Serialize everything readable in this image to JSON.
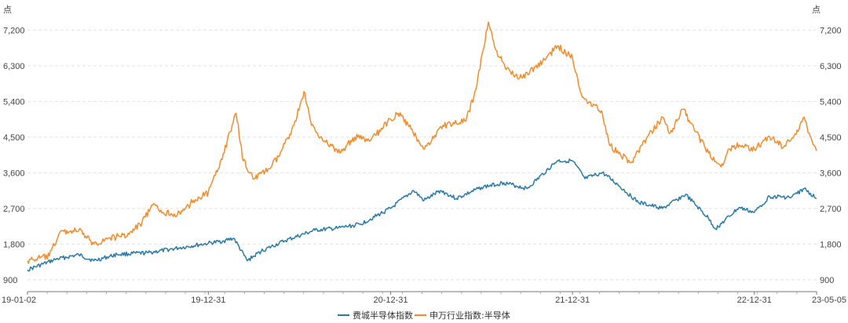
{
  "chart_data": {
    "type": "line",
    "unit_left": "点",
    "unit_right": "点",
    "x_tick_labels": [
      "19-01-02",
      "19-12-31",
      "20-12-31",
      "21-12-31",
      "22-12-31",
      "23-05-05"
    ],
    "y_tick_labels": [
      "900",
      "1,800",
      "2,700",
      "3,600",
      "4,500",
      "5,400",
      "6,300",
      "7,200"
    ],
    "ylim": [
      600,
      7800
    ],
    "grid": true,
    "legend_position": "bottom",
    "series": [
      {
        "name": "费城半导体指数",
        "color": "#2a7aa6",
        "points": [
          [
            "19-01-02",
            1150
          ],
          [
            "19-03-01",
            1420
          ],
          [
            "19-04-15",
            1530
          ],
          [
            "19-05-15",
            1380
          ],
          [
            "19-07-01",
            1540
          ],
          [
            "19-09-01",
            1580
          ],
          [
            "19-11-01",
            1700
          ],
          [
            "19-12-31",
            1820
          ],
          [
            "20-01-31",
            1880
          ],
          [
            "20-02-20",
            1950
          ],
          [
            "20-03-18",
            1380
          ],
          [
            "20-04-15",
            1620
          ],
          [
            "20-06-01",
            1880
          ],
          [
            "20-08-01",
            2150
          ],
          [
            "20-09-15",
            2200
          ],
          [
            "20-10-31",
            2300
          ],
          [
            "20-12-31",
            2700
          ],
          [
            "21-02-15",
            3150
          ],
          [
            "21-03-08",
            2900
          ],
          [
            "21-04-10",
            3150
          ],
          [
            "21-05-12",
            2950
          ],
          [
            "21-07-01",
            3230
          ],
          [
            "21-08-15",
            3350
          ],
          [
            "21-10-01",
            3200
          ],
          [
            "21-11-30",
            3900
          ],
          [
            "21-12-31",
            3900
          ],
          [
            "22-01-25",
            3450
          ],
          [
            "22-03-01",
            3600
          ],
          [
            "22-04-01",
            3300
          ],
          [
            "22-05-12",
            2850
          ],
          [
            "22-06-30",
            2700
          ],
          [
            "22-08-15",
            3050
          ],
          [
            "22-09-30",
            2450
          ],
          [
            "22-10-14",
            2180
          ],
          [
            "22-11-30",
            2720
          ],
          [
            "22-12-31",
            2600
          ],
          [
            "23-01-31",
            3000
          ],
          [
            "23-03-15",
            2980
          ],
          [
            "23-04-10",
            3200
          ],
          [
            "23-05-05",
            2950
          ]
        ]
      },
      {
        "name": "申万行业指数:半导体",
        "color": "#f28d2b",
        "points": [
          [
            "19-01-02",
            1380
          ],
          [
            "19-02-15",
            1500
          ],
          [
            "19-03-08",
            2100
          ],
          [
            "19-04-15",
            2150
          ],
          [
            "19-05-15",
            1800
          ],
          [
            "19-06-15",
            1950
          ],
          [
            "19-07-25",
            2050
          ],
          [
            "19-08-20",
            2350
          ],
          [
            "19-09-10",
            2780
          ],
          [
            "19-10-01",
            2600
          ],
          [
            "19-11-05",
            2550
          ],
          [
            "19-12-01",
            2900
          ],
          [
            "19-12-31",
            3100
          ],
          [
            "20-01-20",
            3700
          ],
          [
            "20-02-25",
            5100
          ],
          [
            "20-03-10",
            3900
          ],
          [
            "20-04-01",
            3450
          ],
          [
            "20-05-01",
            3700
          ],
          [
            "20-05-20",
            4000
          ],
          [
            "20-06-20",
            4800
          ],
          [
            "20-07-10",
            5650
          ],
          [
            "20-07-25",
            4800
          ],
          [
            "20-08-20",
            4400
          ],
          [
            "20-09-20",
            4100
          ],
          [
            "20-10-20",
            4500
          ],
          [
            "20-11-20",
            4400
          ],
          [
            "20-12-31",
            4950
          ],
          [
            "21-01-15",
            5100
          ],
          [
            "21-02-10",
            4700
          ],
          [
            "21-03-09",
            4200
          ],
          [
            "21-04-15",
            4800
          ],
          [
            "21-05-31",
            4900
          ],
          [
            "21-06-20",
            5700
          ],
          [
            "21-07-15",
            7400
          ],
          [
            "21-07-30",
            6700
          ],
          [
            "21-08-20",
            6200
          ],
          [
            "21-09-20",
            6000
          ],
          [
            "21-11-01",
            6400
          ],
          [
            "21-12-01",
            6800
          ],
          [
            "21-12-31",
            6500
          ],
          [
            "22-01-20",
            5500
          ],
          [
            "22-02-15",
            5300
          ],
          [
            "22-03-01",
            5100
          ],
          [
            "22-03-15",
            4300
          ],
          [
            "22-04-27",
            3850
          ],
          [
            "22-05-20",
            4300
          ],
          [
            "22-06-30",
            5000
          ],
          [
            "22-07-15",
            4600
          ],
          [
            "22-08-10",
            5200
          ],
          [
            "22-09-01",
            4700
          ],
          [
            "22-09-30",
            4100
          ],
          [
            "22-10-25",
            3750
          ],
          [
            "22-11-10",
            4200
          ],
          [
            "22-12-01",
            4300
          ],
          [
            "22-12-31",
            4200
          ],
          [
            "23-01-31",
            4500
          ],
          [
            "23-02-28",
            4250
          ],
          [
            "23-03-31",
            4700
          ],
          [
            "23-04-10",
            5000
          ],
          [
            "23-04-20",
            4600
          ],
          [
            "23-05-05",
            4150
          ]
        ]
      }
    ]
  }
}
